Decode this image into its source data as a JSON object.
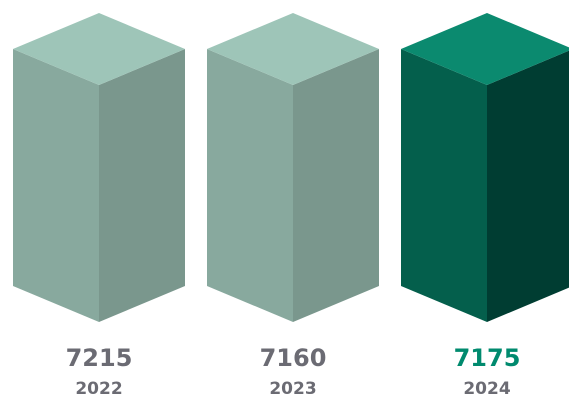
{
  "chart_data": {
    "type": "bar",
    "categories": [
      "2022",
      "2023",
      "2024"
    ],
    "values": [
      7215,
      7160,
      7175
    ],
    "highlight_index": 2,
    "colors": {
      "muted": {
        "top": "#9ec5b8",
        "front": "#88a99e",
        "side": "#7a978d",
        "label": "#6b6b73"
      },
      "highlight": {
        "top": "#0b8a6f",
        "front": "#045f4c",
        "side": "#003d32",
        "label": "#008a6e"
      }
    }
  }
}
